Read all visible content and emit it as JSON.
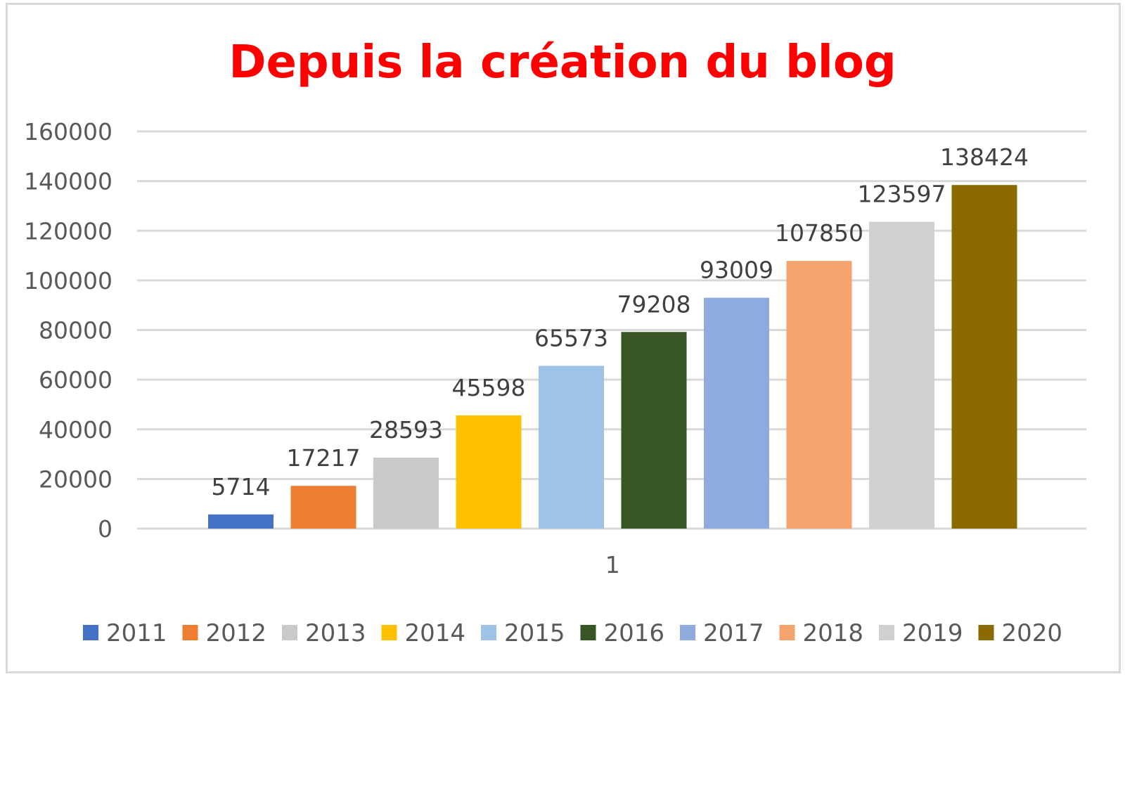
{
  "chart_data": {
    "type": "bar",
    "title": "Depuis la création du blog",
    "title_color": "#ff0000",
    "categories": [
      "1"
    ],
    "ylim": [
      0,
      160000
    ],
    "yticks": [
      0,
      20000,
      40000,
      60000,
      80000,
      100000,
      120000,
      140000,
      160000
    ],
    "grid": true,
    "legend_position": "bottom",
    "series": [
      {
        "name": "2011",
        "values": [
          5714
        ],
        "color": "#4472c4"
      },
      {
        "name": "2012",
        "values": [
          17217
        ],
        "color": "#ed7d31"
      },
      {
        "name": "2013",
        "values": [
          28593
        ],
        "color": "#c9c9c9"
      },
      {
        "name": "2014",
        "values": [
          45598
        ],
        "color": "#ffc000"
      },
      {
        "name": "2015",
        "values": [
          65573
        ],
        "color": "#9dc3e6"
      },
      {
        "name": "2016",
        "values": [
          79208
        ],
        "color": "#375623"
      },
      {
        "name": "2017",
        "values": [
          93009
        ],
        "color": "#8faadc"
      },
      {
        "name": "2018",
        "values": [
          107850
        ],
        "color": "#f4a36f"
      },
      {
        "name": "2019",
        "values": [
          123597
        ],
        "color": "#d0d0d0"
      },
      {
        "name": "2020",
        "values": [
          138424
        ],
        "color": "#8b6a00"
      }
    ],
    "data_labels": [
      "5714",
      "17217",
      "28593",
      "45598",
      "65573",
      "79208",
      "93009",
      "107850",
      "123597",
      "138424"
    ]
  }
}
